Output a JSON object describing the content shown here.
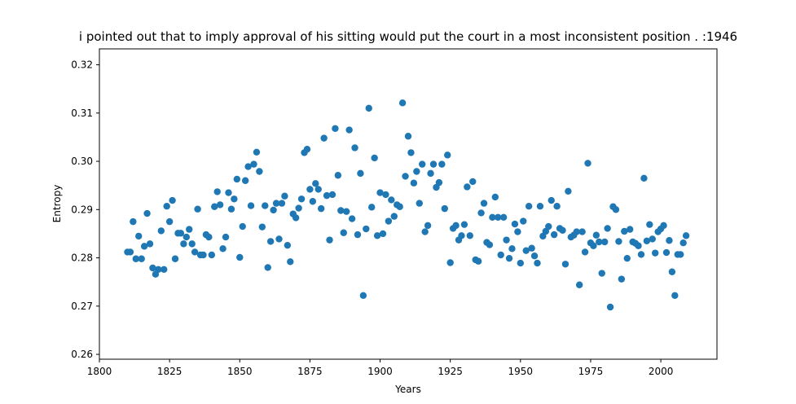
{
  "chart_data": {
    "type": "scatter",
    "title": "i pointed out that to imply approval of his sitting would put the court in a most inconsistent position . :1946",
    "xlabel": "Years",
    "ylabel": "Entropy",
    "xlim": [
      1800,
      2020
    ],
    "ylim": [
      0.259,
      0.3233
    ],
    "xticks": [
      1800,
      1825,
      1850,
      1875,
      1900,
      1925,
      1950,
      1975,
      2000
    ],
    "xtick_labels": [
      "1800",
      "1825",
      "1850",
      "1875",
      "1900",
      "1925",
      "1950",
      "1975",
      "2000"
    ],
    "yticks": [
      0.26,
      0.27,
      0.28,
      0.29,
      0.3,
      0.31,
      0.32
    ],
    "ytick_labels": [
      "0.26",
      "0.27",
      "0.28",
      "0.29",
      "0.30",
      "0.31",
      "0.32"
    ],
    "grid": false,
    "marker_color": "#1f77b4",
    "points": [
      [
        1810,
        0.2812
      ],
      [
        1811,
        0.2812
      ],
      [
        1812,
        0.2875
      ],
      [
        1813,
        0.2798
      ],
      [
        1814,
        0.2845
      ],
      [
        1815,
        0.2798
      ],
      [
        1816,
        0.2824
      ],
      [
        1817,
        0.2892
      ],
      [
        1818,
        0.2829
      ],
      [
        1819,
        0.2779
      ],
      [
        1820,
        0.2766
      ],
      [
        1821,
        0.2776
      ],
      [
        1822,
        0.2856
      ],
      [
        1823,
        0.2776
      ],
      [
        1824,
        0.2907
      ],
      [
        1825,
        0.2875
      ],
      [
        1826,
        0.2919
      ],
      [
        1827,
        0.2798
      ],
      [
        1828,
        0.2851
      ],
      [
        1829,
        0.2851
      ],
      [
        1830,
        0.2829
      ],
      [
        1831,
        0.2843
      ],
      [
        1832,
        0.2859
      ],
      [
        1833,
        0.2829
      ],
      [
        1834,
        0.2812
      ],
      [
        1835,
        0.2901
      ],
      [
        1836,
        0.2806
      ],
      [
        1837,
        0.2806
      ],
      [
        1838,
        0.2848
      ],
      [
        1839,
        0.2843
      ],
      [
        1840,
        0.2806
      ],
      [
        1841,
        0.2906
      ],
      [
        1842,
        0.2937
      ],
      [
        1843,
        0.291
      ],
      [
        1844,
        0.2819
      ],
      [
        1845,
        0.2843
      ],
      [
        1846,
        0.2935
      ],
      [
        1847,
        0.2901
      ],
      [
        1848,
        0.2922
      ],
      [
        1849,
        0.2963
      ],
      [
        1850,
        0.2801
      ],
      [
        1851,
        0.2865
      ],
      [
        1852,
        0.296
      ],
      [
        1853,
        0.2989
      ],
      [
        1854,
        0.2908
      ],
      [
        1855,
        0.2994
      ],
      [
        1856,
        0.3019
      ],
      [
        1857,
        0.2979
      ],
      [
        1858,
        0.2864
      ],
      [
        1859,
        0.2908
      ],
      [
        1860,
        0.278
      ],
      [
        1861,
        0.2834
      ],
      [
        1862,
        0.2899
      ],
      [
        1863,
        0.2913
      ],
      [
        1864,
        0.2839
      ],
      [
        1865,
        0.2913
      ],
      [
        1866,
        0.2928
      ],
      [
        1867,
        0.2826
      ],
      [
        1868,
        0.2792
      ],
      [
        1869,
        0.2891
      ],
      [
        1870,
        0.2883
      ],
      [
        1871,
        0.2903
      ],
      [
        1872,
        0.2922
      ],
      [
        1873,
        0.3018
      ],
      [
        1874,
        0.3025
      ],
      [
        1875,
        0.2942
      ],
      [
        1876,
        0.2917
      ],
      [
        1877,
        0.2954
      ],
      [
        1878,
        0.2942
      ],
      [
        1879,
        0.2902
      ],
      [
        1880,
        0.3048
      ],
      [
        1881,
        0.2929
      ],
      [
        1882,
        0.2837
      ],
      [
        1883,
        0.2931
      ],
      [
        1884,
        0.3068
      ],
      [
        1885,
        0.2971
      ],
      [
        1886,
        0.2898
      ],
      [
        1887,
        0.2852
      ],
      [
        1888,
        0.2896
      ],
      [
        1889,
        0.3065
      ],
      [
        1890,
        0.2881
      ],
      [
        1891,
        0.3028
      ],
      [
        1892,
        0.2848
      ],
      [
        1893,
        0.2975
      ],
      [
        1894,
        0.2722
      ],
      [
        1895,
        0.286
      ],
      [
        1896,
        0.311
      ],
      [
        1897,
        0.2905
      ],
      [
        1898,
        0.3007
      ],
      [
        1899,
        0.2846
      ],
      [
        1900,
        0.2935
      ],
      [
        1901,
        0.285
      ],
      [
        1902,
        0.2931
      ],
      [
        1903,
        0.2876
      ],
      [
        1904,
        0.292
      ],
      [
        1905,
        0.2886
      ],
      [
        1906,
        0.291
      ],
      [
        1907,
        0.2906
      ],
      [
        1908,
        0.3121
      ],
      [
        1909,
        0.2969
      ],
      [
        1910,
        0.3052
      ],
      [
        1911,
        0.3018
      ],
      [
        1912,
        0.2955
      ],
      [
        1913,
        0.2979
      ],
      [
        1914,
        0.2913
      ],
      [
        1915,
        0.2994
      ],
      [
        1916,
        0.2854
      ],
      [
        1917,
        0.2867
      ],
      [
        1918,
        0.2975
      ],
      [
        1919,
        0.2994
      ],
      [
        1920,
        0.2946
      ],
      [
        1921,
        0.2956
      ],
      [
        1922,
        0.2994
      ],
      [
        1923,
        0.2902
      ],
      [
        1924,
        0.3013
      ],
      [
        1925,
        0.279
      ],
      [
        1926,
        0.2861
      ],
      [
        1927,
        0.2867
      ],
      [
        1928,
        0.2837
      ],
      [
        1929,
        0.2846
      ],
      [
        1930,
        0.2869
      ],
      [
        1931,
        0.2947
      ],
      [
        1932,
        0.2846
      ],
      [
        1933,
        0.2958
      ],
      [
        1934,
        0.2796
      ],
      [
        1935,
        0.2793
      ],
      [
        1936,
        0.2893
      ],
      [
        1937,
        0.2913
      ],
      [
        1938,
        0.2832
      ],
      [
        1939,
        0.2827
      ],
      [
        1940,
        0.2884
      ],
      [
        1941,
        0.2926
      ],
      [
        1942,
        0.2884
      ],
      [
        1943,
        0.2806
      ],
      [
        1944,
        0.2884
      ],
      [
        1945,
        0.2837
      ],
      [
        1946,
        0.2799
      ],
      [
        1947,
        0.2819
      ],
      [
        1948,
        0.287
      ],
      [
        1949,
        0.2854
      ],
      [
        1950,
        0.2789
      ],
      [
        1951,
        0.2876
      ],
      [
        1952,
        0.2815
      ],
      [
        1953,
        0.2907
      ],
      [
        1954,
        0.282
      ],
      [
        1955,
        0.2804
      ],
      [
        1956,
        0.2789
      ],
      [
        1957,
        0.2907
      ],
      [
        1958,
        0.2845
      ],
      [
        1959,
        0.2855
      ],
      [
        1960,
        0.2865
      ],
      [
        1961,
        0.2919
      ],
      [
        1962,
        0.2848
      ],
      [
        1963,
        0.2907
      ],
      [
        1964,
        0.2861
      ],
      [
        1965,
        0.2857
      ],
      [
        1966,
        0.2787
      ],
      [
        1967,
        0.2938
      ],
      [
        1968,
        0.2843
      ],
      [
        1969,
        0.2847
      ],
      [
        1970,
        0.2854
      ],
      [
        1971,
        0.2744
      ],
      [
        1972,
        0.2854
      ],
      [
        1973,
        0.2812
      ],
      [
        1974,
        0.2996
      ],
      [
        1975,
        0.2831
      ],
      [
        1976,
        0.2825
      ],
      [
        1977,
        0.2847
      ],
      [
        1978,
        0.2833
      ],
      [
        1979,
        0.2768
      ],
      [
        1980,
        0.2833
      ],
      [
        1981,
        0.2861
      ],
      [
        1982,
        0.2698
      ],
      [
        1983,
        0.2906
      ],
      [
        1984,
        0.29
      ],
      [
        1985,
        0.2834
      ],
      [
        1986,
        0.2756
      ],
      [
        1987,
        0.2855
      ],
      [
        1988,
        0.2799
      ],
      [
        1989,
        0.2859
      ],
      [
        1990,
        0.2833
      ],
      [
        1991,
        0.283
      ],
      [
        1992,
        0.2825
      ],
      [
        1993,
        0.2807
      ],
      [
        1994,
        0.2965
      ],
      [
        1995,
        0.2835
      ],
      [
        1996,
        0.2869
      ],
      [
        1997,
        0.2839
      ],
      [
        1998,
        0.281
      ],
      [
        1999,
        0.2854
      ],
      [
        2000,
        0.286
      ],
      [
        2001,
        0.2867
      ],
      [
        2002,
        0.2811
      ],
      [
        2003,
        0.2836
      ],
      [
        2004,
        0.2771
      ],
      [
        2005,
        0.2722
      ],
      [
        2006,
        0.2807
      ],
      [
        2007,
        0.2807
      ],
      [
        2008,
        0.2831
      ],
      [
        2009,
        0.2846
      ]
    ]
  }
}
